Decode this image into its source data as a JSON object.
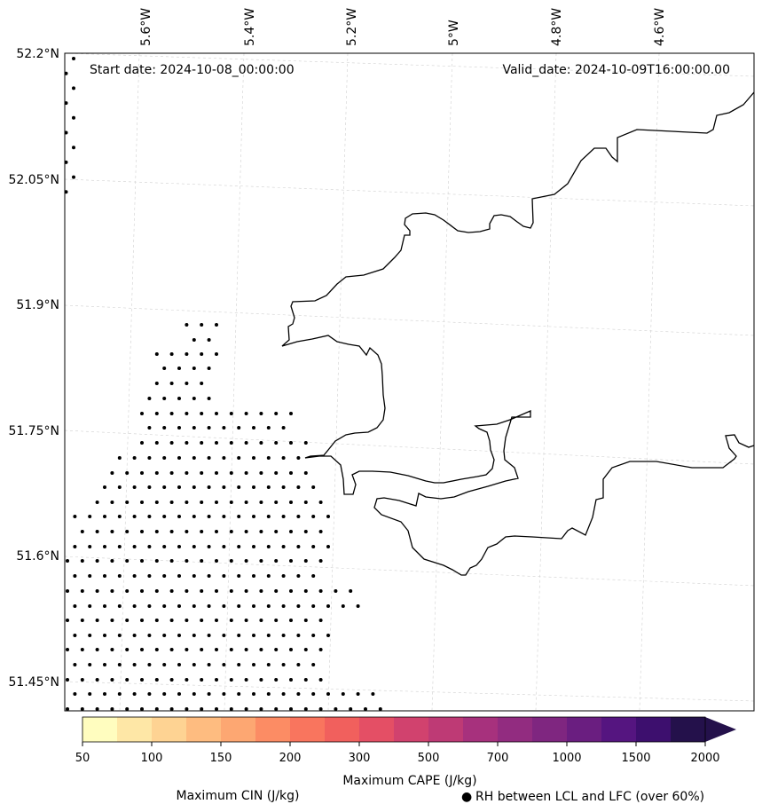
{
  "titles": {
    "start": "Start date: 2024-10-08_00:00:00",
    "valid": "Valid_date: 2024-10-09T16:00:00.00"
  },
  "axes": {
    "lon_labels": [
      "5.6°W",
      "5.4°W",
      "5.2°W",
      "5°W",
      "4.8°W",
      "4.6°W"
    ],
    "lat_labels": [
      "52.2°N",
      "52.05°N",
      "51.9°N",
      "51.75°N",
      "51.6°N",
      "51.45°N"
    ]
  },
  "colorbar": {
    "label": "Maximum CAPE (J/kg)",
    "ticks": [
      "50",
      "100",
      "150",
      "200",
      "300",
      "500",
      "700",
      "1000",
      "1500",
      "2000"
    ],
    "colors": [
      "#fffdbf",
      "#fee7a6",
      "#fed393",
      "#febc80",
      "#fda772",
      "#fc8c64",
      "#f9755e",
      "#f1605d",
      "#e44f65",
      "#d1426e",
      "#be3a75",
      "#a7317d",
      "#922c80",
      "#7f2680",
      "#6a1e80",
      "#551580",
      "#3d0f6e",
      "#24114b"
    ]
  },
  "legend": {
    "cin": "Maximum CIN (J/kg)",
    "cin_color": "#ff0000",
    "rh": "RH between LCL and LFC (over 60%)",
    "rh_marker": "●"
  }
}
